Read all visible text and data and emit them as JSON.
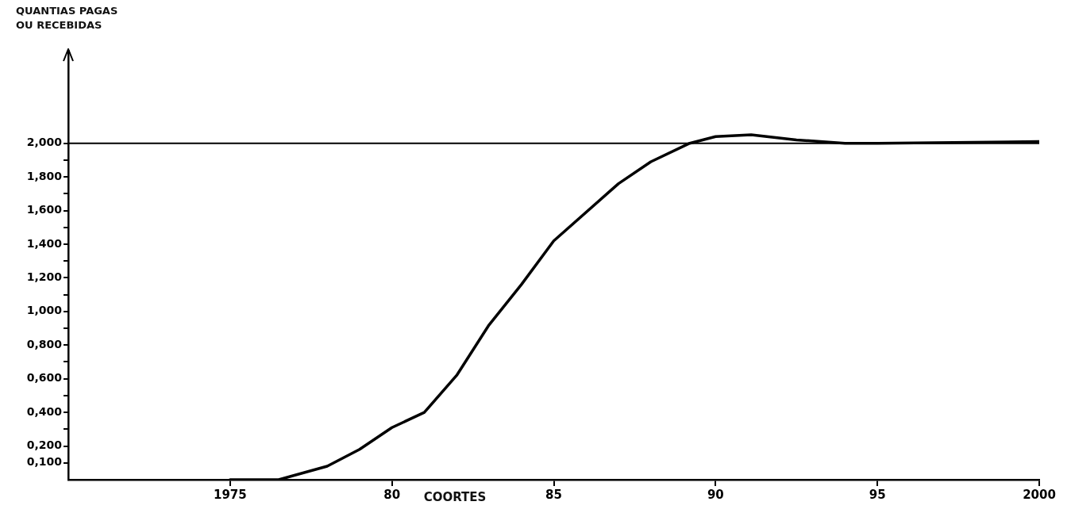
{
  "chart_data": {
    "type": "line",
    "xlabel": "COORTES",
    "ylabel": "QUANTIAS PAGAS OU RECEBIDAS",
    "xlim": [
      1970,
      2000
    ],
    "xticks": [
      1975,
      {
        "value": 1980,
        "label": "80"
      },
      {
        "value": 1985,
        "label": "85"
      },
      {
        "value": 1990,
        "label": "90"
      },
      {
        "value": 1995,
        "label": "95"
      },
      2000
    ],
    "ylim": [
      0,
      2.55
    ],
    "yticks": [
      {
        "value": 0.1,
        "label": "0,100"
      },
      {
        "value": 0.2,
        "label": "0,200"
      },
      {
        "value": 0.3,
        "label": null
      },
      {
        "value": 0.4,
        "label": "0,400"
      },
      {
        "value": 0.5,
        "label": null
      },
      {
        "value": 0.6,
        "label": "0,600"
      },
      {
        "value": 0.7,
        "label": null
      },
      {
        "value": 0.8,
        "label": "0,800"
      },
      {
        "value": 0.9,
        "label": null
      },
      {
        "value": 1.0,
        "label": "1,000"
      },
      {
        "value": 1.1,
        "label": null
      },
      {
        "value": 1.2,
        "label": "1,200"
      },
      {
        "value": 1.3,
        "label": null
      },
      {
        "value": 1.4,
        "label": "1,400"
      },
      {
        "value": 1.5,
        "label": null
      },
      {
        "value": 1.6,
        "label": "1,600"
      },
      {
        "value": 1.7,
        "label": null
      },
      {
        "value": 1.8,
        "label": "1,800"
      },
      {
        "value": 1.9,
        "label": null
      },
      {
        "value": 2.0,
        "label": "2,000"
      }
    ],
    "x": [
      1975,
      1976.5,
      1978,
      1979,
      1980,
      1981,
      1982,
      1983,
      1984,
      1985,
      1987,
      1988,
      1989.2,
      1990,
      1991.1,
      1992.5,
      1994,
      1995,
      2000
    ],
    "series": [
      {
        "color": "#000000",
        "values": [
          0,
          0,
          0.08,
          0.18,
          0.31,
          0.4,
          0.62,
          0.92,
          1.16,
          1.42,
          1.76,
          1.89,
          2.0,
          2.04,
          2.05,
          2.02,
          2.0,
          2.0,
          2.01
        ]
      }
    ],
    "ref_lines": [
      {
        "axis": "y",
        "value": 2.0,
        "color": "#000000"
      }
    ],
    "grid": false,
    "legend": false,
    "marker": "none",
    "line_style": "solid"
  }
}
